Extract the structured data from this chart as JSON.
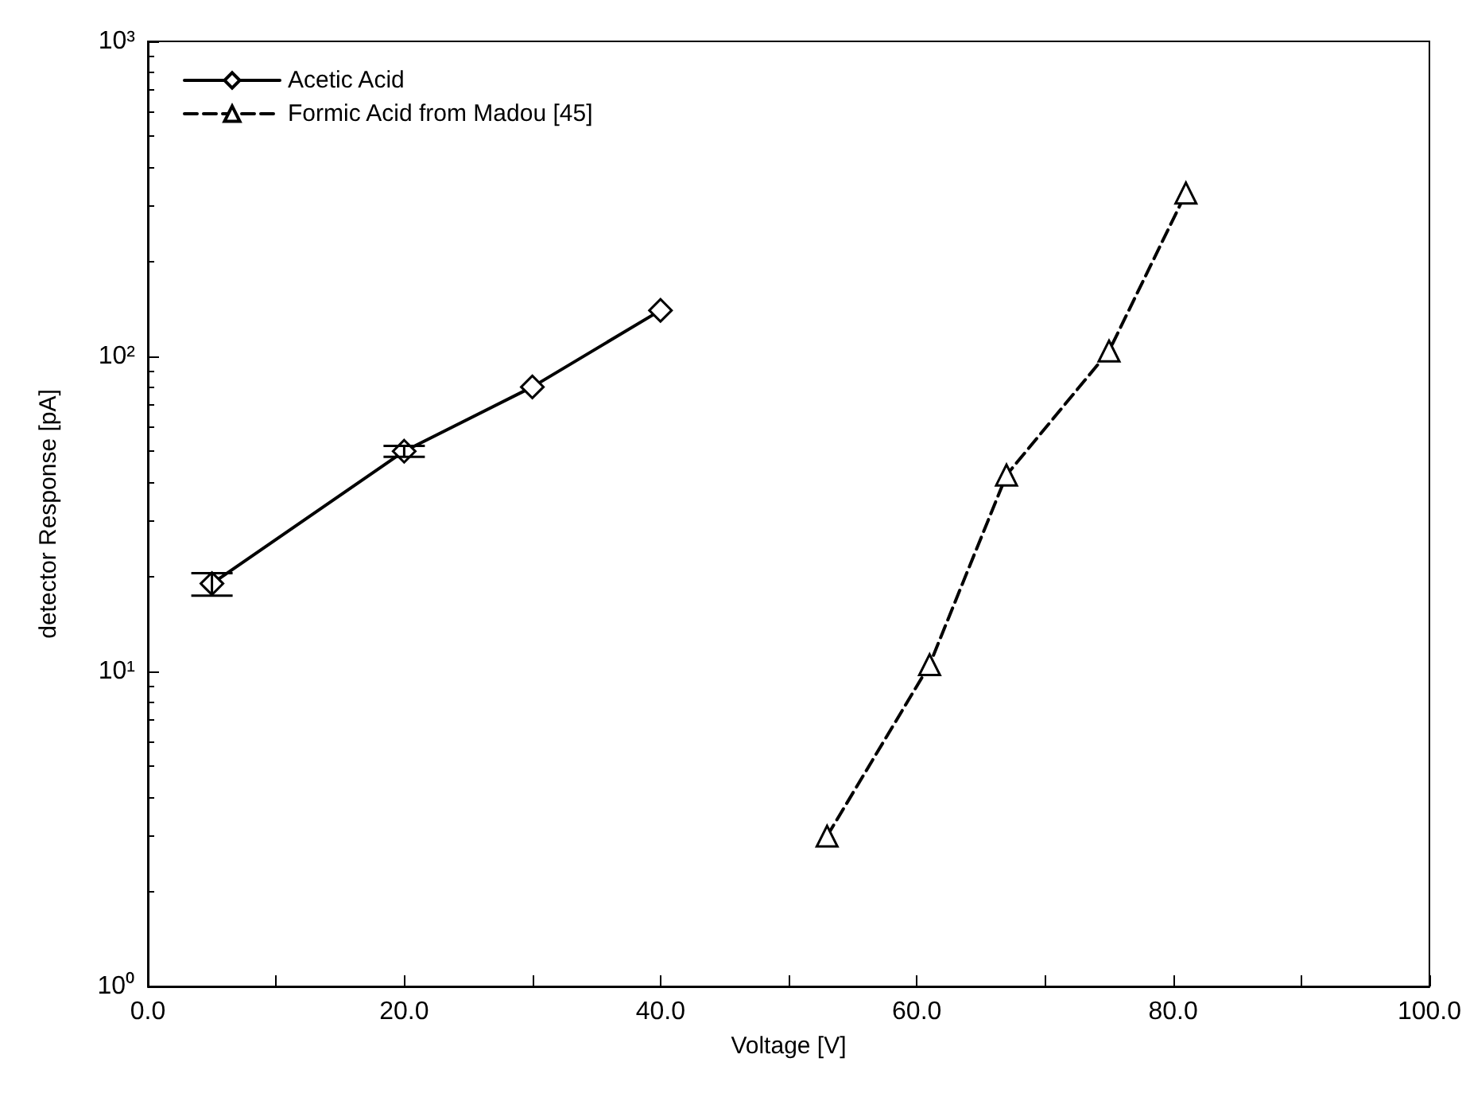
{
  "chart_data": {
    "type": "line",
    "xlabel": "Voltage [V]",
    "ylabel": "detector Response [pA]",
    "log": "y",
    "grid": false,
    "legend": "top left",
    "xlim": [
      0,
      100
    ],
    "xticks": [
      {
        "value": 0,
        "label": "0.0"
      },
      {
        "value": 10,
        "label": null
      },
      {
        "value": 20,
        "label": "20.0"
      },
      {
        "value": 30,
        "label": null
      },
      {
        "value": 40,
        "label": "40.0"
      },
      {
        "value": 50,
        "label": null
      },
      {
        "value": 60,
        "label": "60.0"
      },
      {
        "value": 70,
        "label": null
      },
      {
        "value": 80,
        "label": "80.0"
      },
      {
        "value": 90,
        "label": null
      },
      {
        "value": 100,
        "label": "100.0"
      }
    ],
    "ylim": [
      1,
      1000
    ],
    "yticks": [
      {
        "value": 1,
        "label": "10⁰"
      },
      {
        "value": 10,
        "label": "10¹"
      },
      {
        "value": 100,
        "label": "10²"
      },
      {
        "value": 1000,
        "label": "10³"
      }
    ],
    "series": [
      {
        "name": "Acetic Acid",
        "color": "#000000",
        "marker": "diamond",
        "line_style": "solid",
        "x": [
          5,
          20,
          30,
          40
        ],
        "values": [
          19,
          50,
          80,
          140
        ],
        "errors": [
          [
            17.4,
            20.5
          ],
          [
            48,
            52
          ],
          null,
          null
        ]
      },
      {
        "name": "Formic Acid from Madou [45]",
        "color": "#000000",
        "marker": "triangle",
        "line_style": "dashed",
        "x": [
          53,
          61,
          67,
          75,
          81
        ],
        "values": [
          3,
          10.5,
          42,
          104,
          330
        ]
      }
    ]
  }
}
